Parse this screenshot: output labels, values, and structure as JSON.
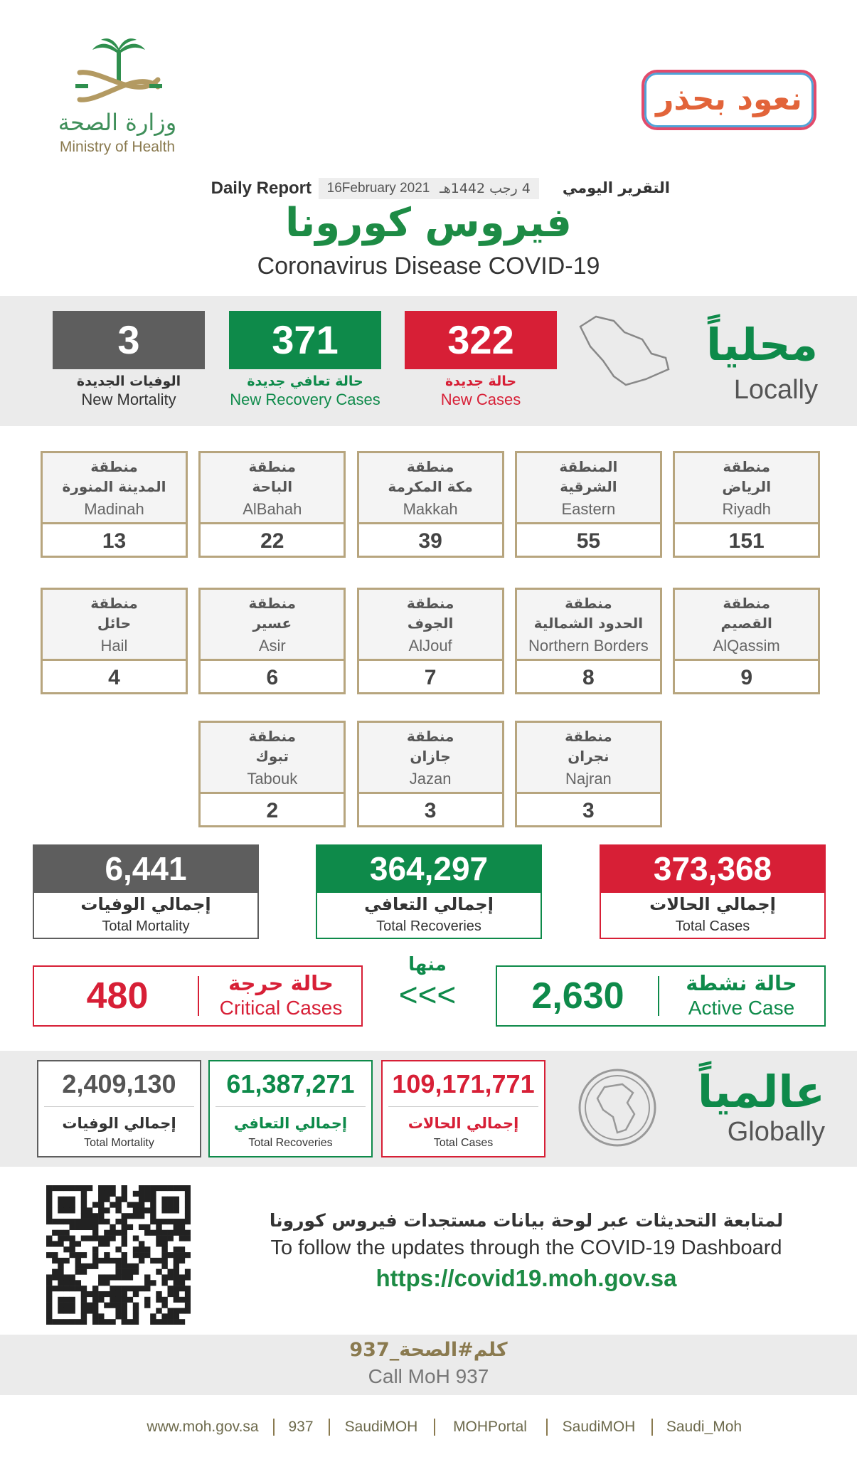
{
  "header": {
    "ministry_ar": "وزارة الصحة",
    "ministry_en": "Ministry of Health",
    "campaign": "نعود بحذر",
    "report_ar": "التقرير اليومي",
    "date_hijri": "4 رجب 1442هـ",
    "date_gregorian": "16February 2021",
    "report_en": "Daily Report",
    "title_ar": "فيروس كورونا",
    "title_en": "Coronavirus Disease COVID-19"
  },
  "locally": {
    "title_ar": "محلياً",
    "title_en": "Locally",
    "stats": [
      {
        "value": "322",
        "label_ar": "حالة جديدة",
        "label_en": "New Cases"
      },
      {
        "value": "371",
        "label_ar": "حالة تعافي جديدة",
        "label_en": "New Recovery Cases"
      },
      {
        "value": "3",
        "label_ar": "الوفيات الجديدة",
        "label_en": "New Mortality"
      }
    ]
  },
  "regions": [
    {
      "prefix": "منطقة",
      "name_ar": "الرياض",
      "name_en": "Riyadh",
      "value": "151"
    },
    {
      "prefix": "المنطقة",
      "name_ar": "الشرقية",
      "name_en": "Eastern",
      "value": "55"
    },
    {
      "prefix": "منطقة",
      "name_ar": "مكة المكرمة",
      "name_en": "Makkah",
      "value": "39"
    },
    {
      "prefix": "منطقة",
      "name_ar": "الباحة",
      "name_en": "AlBahah",
      "value": "22"
    },
    {
      "prefix": "منطقة",
      "name_ar": "المدينة المنورة",
      "name_en": "Madinah",
      "value": "13"
    },
    {
      "prefix": "منطقة",
      "name_ar": "القصيم",
      "name_en": "AlQassim",
      "value": "9"
    },
    {
      "prefix": "منطقة",
      "name_ar": "الحدود الشمالية",
      "name_en": "Northern Borders",
      "value": "8"
    },
    {
      "prefix": "منطقة",
      "name_ar": "الجوف",
      "name_en": "AlJouf",
      "value": "7"
    },
    {
      "prefix": "منطقة",
      "name_ar": "عسير",
      "name_en": "Asir",
      "value": "6"
    },
    {
      "prefix": "منطقة",
      "name_ar": "حائل",
      "name_en": "Hail",
      "value": "4"
    },
    {
      "prefix": "منطقة",
      "name_ar": "نجران",
      "name_en": "Najran",
      "value": "3"
    },
    {
      "prefix": "منطقة",
      "name_ar": "جازان",
      "name_en": "Jazan",
      "value": "3"
    },
    {
      "prefix": "منطقة",
      "name_ar": "تبوك",
      "name_en": "Tabouk",
      "value": "2"
    }
  ],
  "totals": [
    {
      "value": "373,368",
      "label_ar": "إجمالي الحالات",
      "label_en": "Total Cases"
    },
    {
      "value": "364,297",
      "label_ar": "إجمالي التعافي",
      "label_en": "Total Recoveries"
    },
    {
      "value": "6,441",
      "label_ar": "إجمالي الوفيات",
      "label_en": "Total Mortality"
    }
  ],
  "active": {
    "value": "2,630",
    "label_ar": "حالة نشطة",
    "label_en": "Active Case"
  },
  "of_which": "منها",
  "arrows": "<<<",
  "critical": {
    "value": "480",
    "label_ar": "حالة حرجة",
    "label_en": "Critical Cases"
  },
  "globally": {
    "title_ar": "عالمياً",
    "title_en": "Globally",
    "stats": [
      {
        "value": "109,171,771",
        "label_ar": "إجمالي الحالات",
        "label_en": "Total Cases"
      },
      {
        "value": "61,387,271",
        "label_ar": "إجمالي التعافي",
        "label_en": "Total Recoveries"
      },
      {
        "value": "2,409,130",
        "label_ar": "إجمالي الوفيات",
        "label_en": "Total Mortality"
      }
    ]
  },
  "dashboard": {
    "text_ar": "لمتابعة التحديثات عبر لوحة بيانات مستجدات فيروس كورونا",
    "text_en": "To follow the updates through the COVID-19 Dashboard",
    "url": "https://covid19.moh.gov.sa"
  },
  "hotline": {
    "text_ar": "كلم#الصحة_937",
    "text_en": "Call MoH 937"
  },
  "footer": [
    "www.moh.gov.sa",
    "937",
    "SaudiMOH",
    "MOHPortal",
    "SaudiMOH",
    "Saudi_Moh"
  ]
}
